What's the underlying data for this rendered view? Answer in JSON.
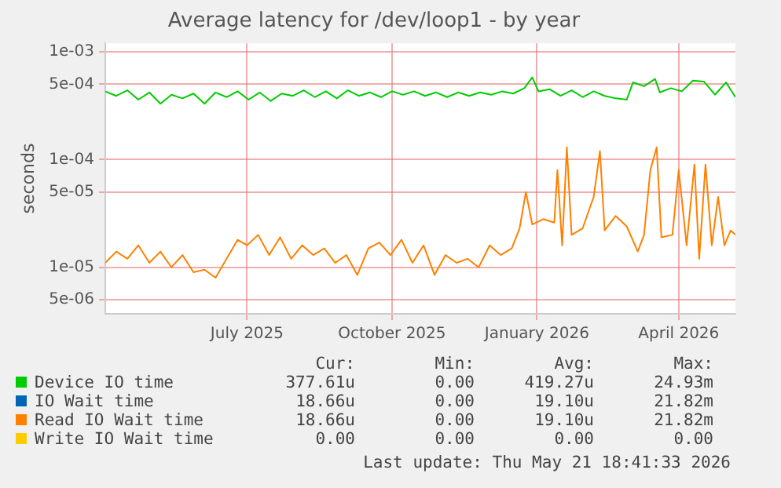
{
  "chart_data": {
    "type": "line",
    "title": "Average latency for /dev/loop1 - by year",
    "ylabel": "seconds",
    "log": "y",
    "grid": true,
    "legend": "bottom",
    "marker": "none",
    "line_style": "solid",
    "xlim": [
      "2025-04-16",
      "2026-05-21"
    ],
    "xticks": [
      {
        "value": "2025-07-15",
        "label": "July 2025"
      },
      {
        "value": "2025-10-15",
        "label": "October 2025"
      },
      {
        "value": "2026-01-15",
        "label": "January 2026"
      },
      {
        "value": "2026-04-15",
        "label": "April 2026"
      }
    ],
    "ylim": [
      3.7e-06,
      0.0012
    ],
    "yticks": [
      {
        "value": 5e-06,
        "label": "5e-06"
      },
      {
        "value": 1e-05,
        "label": "1e-05"
      },
      {
        "value": 5e-05,
        "label": "5e-05"
      },
      {
        "value": 0.0001,
        "label": "1e-04"
      },
      {
        "value": 0.0005,
        "label": "5e-04"
      },
      {
        "value": 0.001,
        "label": "1e-03"
      }
    ],
    "series": [
      {
        "name": "Device IO time",
        "color": "#00cc00",
        "x": [
          "2025-04-16",
          "2025-04-23",
          "2025-04-30",
          "2025-05-07",
          "2025-05-14",
          "2025-05-21",
          "2025-05-28",
          "2025-06-04",
          "2025-06-11",
          "2025-06-18",
          "2025-06-25",
          "2025-07-02",
          "2025-07-09",
          "2025-07-16",
          "2025-07-23",
          "2025-07-30",
          "2025-08-06",
          "2025-08-13",
          "2025-08-20",
          "2025-08-27",
          "2025-09-03",
          "2025-09-10",
          "2025-09-17",
          "2025-09-24",
          "2025-10-01",
          "2025-10-08",
          "2025-10-15",
          "2025-10-22",
          "2025-10-29",
          "2025-11-05",
          "2025-11-12",
          "2025-11-19",
          "2025-11-26",
          "2025-12-03",
          "2025-12-10",
          "2025-12-17",
          "2025-12-24",
          "2025-12-31",
          "2026-01-07",
          "2026-01-12",
          "2026-01-16",
          "2026-01-23",
          "2026-01-30",
          "2026-02-06",
          "2026-02-13",
          "2026-02-20",
          "2026-02-27",
          "2026-03-06",
          "2026-03-13",
          "2026-03-17",
          "2026-03-24",
          "2026-03-31",
          "2026-04-03",
          "2026-04-10",
          "2026-04-17",
          "2026-04-24",
          "2026-05-01",
          "2026-05-08",
          "2026-05-15",
          "2026-05-21"
        ],
        "values": [
          0.00043,
          0.00039,
          0.00044,
          0.00036,
          0.00042,
          0.00033,
          0.0004,
          0.00037,
          0.00041,
          0.00033,
          0.00042,
          0.00038,
          0.00043,
          0.00036,
          0.00042,
          0.00035,
          0.00041,
          0.00039,
          0.00044,
          0.00038,
          0.00043,
          0.00037,
          0.00044,
          0.00039,
          0.00042,
          0.00038,
          0.00043,
          0.0004,
          0.00043,
          0.00039,
          0.00042,
          0.00038,
          0.00042,
          0.00039,
          0.00042,
          0.0004,
          0.00043,
          0.00041,
          0.00046,
          0.00058,
          0.00043,
          0.00045,
          0.00039,
          0.00044,
          0.00038,
          0.00043,
          0.00039,
          0.00037,
          0.00036,
          0.00052,
          0.00048,
          0.00056,
          0.00042,
          0.00046,
          0.00043,
          0.00054,
          0.00053,
          0.0004,
          0.00052,
          0.00038
        ]
      },
      {
        "name": "IO Wait time",
        "color": "#0066b3"
      },
      {
        "name": "Read IO Wait time",
        "color": "#ff8000",
        "x": [
          "2025-04-16",
          "2025-04-23",
          "2025-04-30",
          "2025-05-07",
          "2025-05-14",
          "2025-05-21",
          "2025-05-28",
          "2025-06-04",
          "2025-06-11",
          "2025-06-18",
          "2025-06-25",
          "2025-07-02",
          "2025-07-09",
          "2025-07-15",
          "2025-07-22",
          "2025-07-29",
          "2025-08-05",
          "2025-08-12",
          "2025-08-19",
          "2025-08-26",
          "2025-09-02",
          "2025-09-09",
          "2025-09-16",
          "2025-09-23",
          "2025-09-30",
          "2025-10-07",
          "2025-10-14",
          "2025-10-21",
          "2025-10-28",
          "2025-11-04",
          "2025-11-11",
          "2025-11-18",
          "2025-11-25",
          "2025-12-02",
          "2025-12-09",
          "2025-12-16",
          "2025-12-23",
          "2025-12-30",
          "2026-01-04",
          "2026-01-08",
          "2026-01-12",
          "2026-01-19",
          "2026-01-26",
          "2026-01-28",
          "2026-01-31",
          "2026-02-03",
          "2026-02-06",
          "2026-02-13",
          "2026-02-20",
          "2026-02-24",
          "2026-02-27",
          "2026-03-06",
          "2026-03-13",
          "2026-03-20",
          "2026-03-24",
          "2026-03-28",
          "2026-04-01",
          "2026-04-04",
          "2026-04-11",
          "2026-04-15",
          "2026-04-20",
          "2026-04-25",
          "2026-04-28",
          "2026-05-02",
          "2026-05-06",
          "2026-05-10",
          "2026-05-14",
          "2026-05-18",
          "2026-05-21"
        ],
        "values": [
          1.1e-05,
          1.4e-05,
          1.2e-05,
          1.6e-05,
          1.1e-05,
          1.4e-05,
          1e-05,
          1.3e-05,
          9e-06,
          9.5e-06,
          8e-06,
          1.2e-05,
          1.8e-05,
          1.6e-05,
          2e-05,
          1.3e-05,
          1.9e-05,
          1.2e-05,
          1.6e-05,
          1.3e-05,
          1.5e-05,
          1.1e-05,
          1.3e-05,
          8.5e-06,
          1.5e-05,
          1.7e-05,
          1.3e-05,
          1.8e-05,
          1.1e-05,
          1.6e-05,
          8.5e-06,
          1.3e-05,
          1.1e-05,
          1.2e-05,
          1e-05,
          1.6e-05,
          1.3e-05,
          1.5e-05,
          2.3e-05,
          5e-05,
          2.5e-05,
          2.8e-05,
          2.6e-05,
          8e-05,
          1.6e-05,
          0.00013,
          2e-05,
          2.3e-05,
          4.5e-05,
          0.00012,
          2.2e-05,
          3e-05,
          2.4e-05,
          1.4e-05,
          2e-05,
          8e-05,
          0.00013,
          1.9e-05,
          2e-05,
          8e-05,
          1.6e-05,
          9e-05,
          1.2e-05,
          9e-05,
          1.6e-05,
          4.5e-05,
          1.6e-05,
          2.2e-05,
          2e-05
        ]
      },
      {
        "name": "Write IO Wait time",
        "color": "#ffcc00"
      }
    ],
    "annotations": [
      "Cur:",
      "Min:",
      "Avg:",
      "Max:",
      "377.61u",
      "0.00",
      "419.27u",
      "24.93m",
      "18.66u",
      "0.00",
      "19.10u",
      "21.82m",
      "18.66u",
      "0.00",
      "19.10u",
      "21.82m",
      "0.00",
      "0.00",
      "0.00",
      "0.00",
      "Last update: Thu May 21 18:41:33 2026"
    ]
  }
}
